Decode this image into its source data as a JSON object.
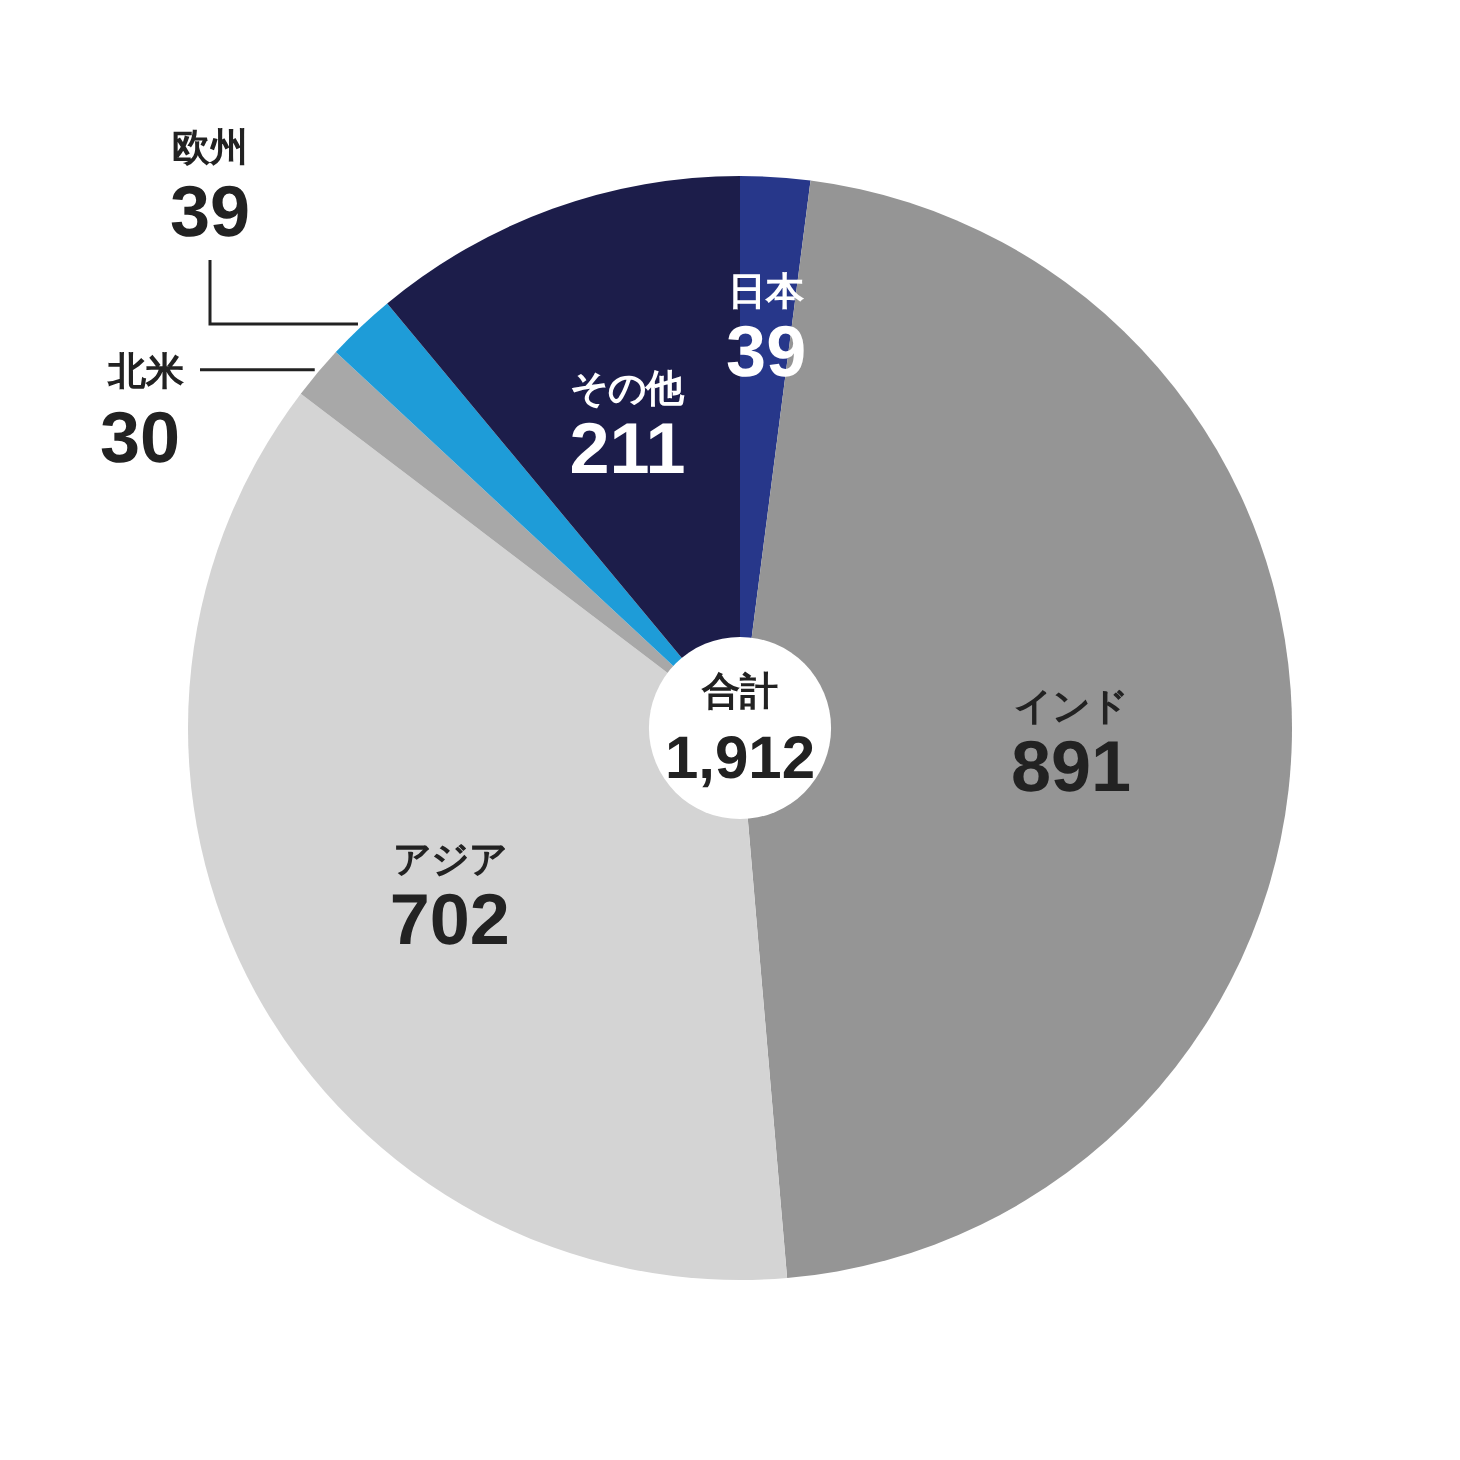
{
  "chart_data": {
    "type": "pie",
    "categories": [
      "日本",
      "インド",
      "アジア",
      "北米",
      "欧州",
      "その他"
    ],
    "values": [
      39,
      891,
      702,
      30,
      39,
      211
    ],
    "colors": [
      "#27378a",
      "#959595",
      "#d4d4d4",
      "#a8a8a8",
      "#1e9cd8",
      "#1c1d4a"
    ],
    "data_labels": true,
    "annotations": [
      "合計",
      "1,912"
    ]
  }
}
